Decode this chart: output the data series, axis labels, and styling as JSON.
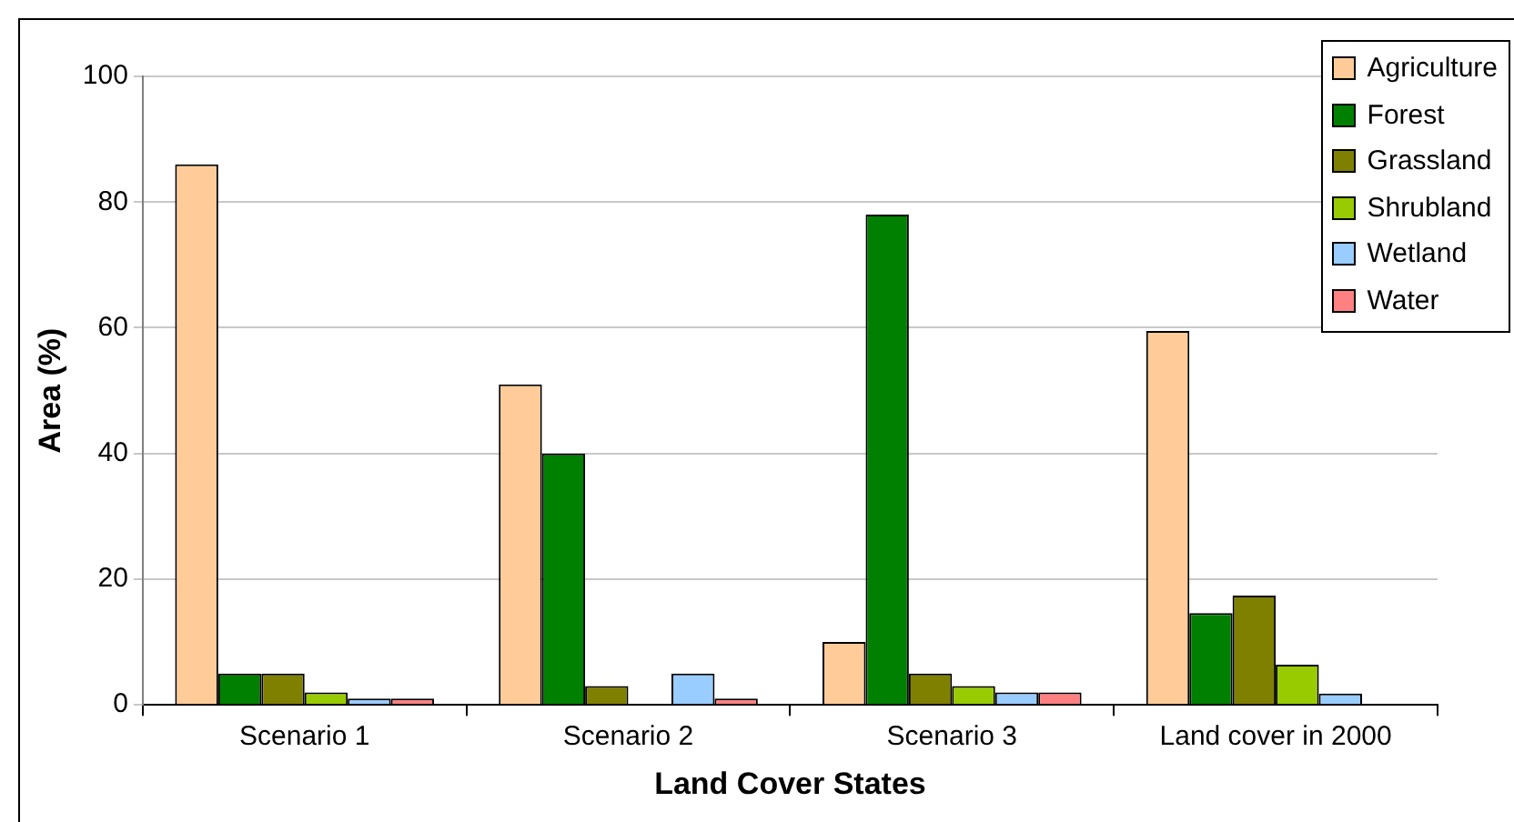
{
  "chart_data": {
    "type": "bar",
    "xlabel": "Land Cover States",
    "ylabel": "Area (%)",
    "categories": [
      "Scenario 1",
      "Scenario 2",
      "Scenario 3",
      "Land cover in 2000"
    ],
    "series": [
      {
        "name": "Agriculture",
        "color": "#ffcc99",
        "values": [
          86,
          51,
          10,
          59.5
        ]
      },
      {
        "name": "Forest",
        "color": "#008000",
        "values": [
          5,
          40,
          78,
          14.6
        ]
      },
      {
        "name": "Grassland",
        "color": "#808000",
        "values": [
          5,
          3,
          5,
          17.4
        ]
      },
      {
        "name": "Shrubland",
        "color": "#99cc00",
        "values": [
          2,
          null,
          3,
          6.4
        ]
      },
      {
        "name": "Wetland",
        "color": "#99ccff",
        "values": [
          1,
          5,
          2,
          1.8
        ]
      },
      {
        "name": "Water",
        "color": "#ff8080",
        "values": [
          1,
          1,
          2,
          null
        ]
      }
    ],
    "ylim": [
      0,
      100
    ],
    "yticks": [
      0,
      20,
      40,
      60,
      80,
      100
    ],
    "grid": "y",
    "legend": "top right"
  }
}
